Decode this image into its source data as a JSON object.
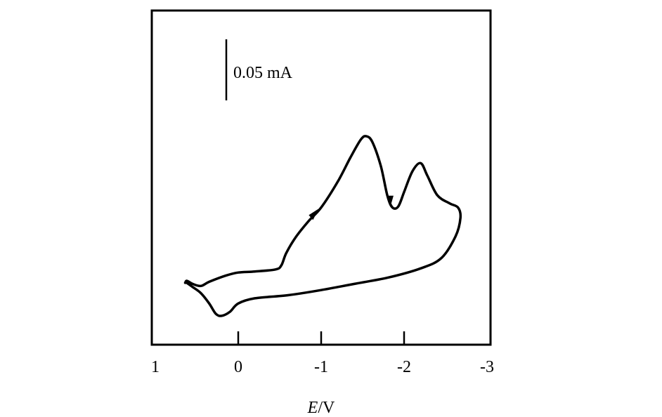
{
  "chart_data": {
    "type": "line",
    "title": "",
    "xlabel_italic": "E",
    "xlabel_rest": "/V",
    "x_ticks": [
      1,
      0,
      -1,
      -2,
      -3
    ],
    "x_tick_labels": [
      "1",
      "0",
      "-1",
      "-2",
      "-3"
    ],
    "xlim": [
      1,
      -3
    ],
    "y_axis_shown": false,
    "scale_bar_label": "0.05 mA",
    "scale_bar_value_mA": 0.05,
    "grid": false,
    "series": [
      {
        "values_note": "",
        "points": [
          [
            0.64,
            0.063
          ],
          [
            0.62,
            0.065
          ],
          [
            0.55,
            0.062
          ],
          [
            0.45,
            0.06
          ],
          [
            0.35,
            0.064
          ],
          [
            0.15,
            0.07
          ],
          [
            0.0,
            0.073
          ],
          [
            -0.2,
            0.074
          ],
          [
            -0.45,
            0.076
          ],
          [
            -0.52,
            0.08
          ],
          [
            -0.58,
            0.092
          ],
          [
            -0.7,
            0.108
          ],
          [
            -0.85,
            0.123
          ],
          [
            -1.0,
            0.136
          ],
          [
            -1.2,
            0.161
          ],
          [
            -1.35,
            0.184
          ],
          [
            -1.48,
            0.202
          ],
          [
            -1.55,
            0.205
          ],
          [
            -1.62,
            0.199
          ],
          [
            -1.72,
            0.176
          ],
          [
            -1.8,
            0.147
          ],
          [
            -1.86,
            0.136
          ],
          [
            -1.93,
            0.137
          ],
          [
            -2.0,
            0.151
          ],
          [
            -2.1,
            0.171
          ],
          [
            -2.2,
            0.179
          ],
          [
            -2.28,
            0.167
          ],
          [
            -2.4,
            0.148
          ],
          [
            -2.55,
            0.14
          ],
          [
            -2.65,
            0.136
          ],
          [
            -2.68,
            0.126
          ],
          [
            -2.62,
            0.108
          ],
          [
            -2.45,
            0.087
          ],
          [
            -2.2,
            0.077
          ],
          [
            -1.8,
            0.068
          ],
          [
            -1.4,
            0.062
          ],
          [
            -1.0,
            0.056
          ],
          [
            -0.6,
            0.051
          ],
          [
            -0.2,
            0.048
          ],
          [
            0.0,
            0.043
          ],
          [
            0.1,
            0.035
          ],
          [
            0.2,
            0.031
          ],
          [
            0.27,
            0.033
          ],
          [
            0.35,
            0.043
          ],
          [
            0.45,
            0.053
          ],
          [
            0.55,
            0.059
          ],
          [
            0.62,
            0.063
          ]
        ]
      }
    ],
    "arrows": [
      {
        "at": [
          -0.91,
          0.13
        ],
        "direction": "forward"
      },
      {
        "at": [
          -1.83,
          0.142
        ],
        "direction": "down"
      }
    ],
    "line_color": "#000000"
  }
}
